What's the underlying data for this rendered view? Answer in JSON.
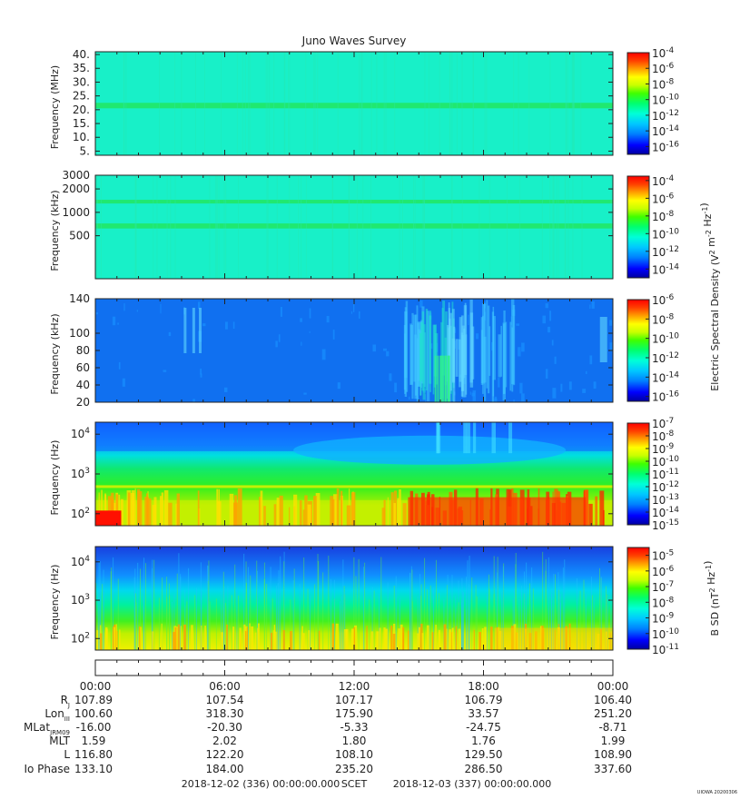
{
  "page": {
    "title": "Juno Waves Survey",
    "footer_stamp": "UIOWA 20200306"
  },
  "colors": {
    "scale": [
      "#0000a0",
      "#0000ff",
      "#0080ff",
      "#00c0ff",
      "#00ffe0",
      "#00ff80",
      "#40ff00",
      "#c0ff00",
      "#ffff00",
      "#ffa000",
      "#ff4000",
      "#ff0000"
    ]
  },
  "chart_data": [
    {
      "type": "heatmap",
      "ylabel": "Frequency (MHz)",
      "scale": "linear",
      "ylim": [
        3.5,
        41
      ],
      "yticks": [
        "5.",
        "10.",
        "15.",
        "20.",
        "25.",
        "30.",
        "35.",
        "40."
      ],
      "ytick_values": [
        5,
        10,
        15,
        20,
        25,
        30,
        35,
        40
      ],
      "colorbar": {
        "ticks": [
          "-4",
          "-6",
          "-8",
          "-10",
          "-12",
          "-14",
          "-16"
        ],
        "base": "10",
        "min_exp": -17,
        "max_exp": -4
      },
      "colorbar_label": "",
      "bands": [
        {
          "from": 20.5,
          "to": 22.5
        }
      ]
    },
    {
      "type": "heatmap",
      "ylabel": "Frequency (kHz)",
      "scale": "log",
      "ylim": [
        140,
        3000
      ],
      "yticks": [
        "500",
        "1000",
        "2000",
        "3000"
      ],
      "ytick_values": [
        500,
        1000,
        2000,
        3000
      ],
      "colorbar": {
        "ticks": [
          "-4",
          "-6",
          "-8",
          "-10",
          "-12",
          "-14"
        ],
        "base": "10",
        "min_exp": -15,
        "max_exp": -3.5
      },
      "colorbar_label": "Electric Spectral Density (V^2 m^-2 Hz^-1)",
      "bands": [
        {
          "from": 620,
          "to": 720
        },
        {
          "from": 1300,
          "to": 1450
        }
      ]
    },
    {
      "type": "heatmap",
      "ylabel": "Frequency (kHz)",
      "scale": "linear",
      "ylim": [
        20,
        140
      ],
      "yticks": [
        "20",
        "40",
        "60",
        "80",
        "100",
        "140"
      ],
      "ytick_values": [
        20,
        40,
        60,
        80,
        100,
        140
      ],
      "colorbar": {
        "ticks": [
          "-6",
          "-8",
          "-10",
          "-12",
          "-14",
          "-16"
        ],
        "base": "10",
        "min_exp": -16.5,
        "max_exp": -6
      },
      "colorbar_label": ""
    },
    {
      "type": "heatmap",
      "ylabel": "Frequency (Hz)",
      "scale": "log",
      "ylim": [
        50,
        20000
      ],
      "yticks": [
        "10^2",
        "10^3",
        "10^4"
      ],
      "ytick_values": [
        100,
        1000,
        10000
      ],
      "colorbar": {
        "ticks": [
          "-7",
          "-8",
          "-9",
          "-10",
          "-11",
          "-12",
          "-13",
          "-14",
          "-15"
        ],
        "base": "10",
        "min_exp": -15,
        "max_exp": -7
      },
      "colorbar_label": ""
    },
    {
      "type": "heatmap",
      "ylabel": "Frequency (Hz)",
      "scale": "log",
      "ylim": [
        50,
        25000
      ],
      "yticks": [
        "10^2",
        "10^3",
        "10^4"
      ],
      "ytick_values": [
        100,
        1000,
        10000
      ],
      "colorbar": {
        "ticks": [
          "-5",
          "-6",
          "-7",
          "-8",
          "-9",
          "-10",
          "-11"
        ],
        "base": "10",
        "min_exp": -11,
        "max_exp": -4.5
      },
      "colorbar_label": "B SD (nT^2 Hz^-1)"
    }
  ],
  "xaxis": {
    "ticks": [
      "00:00",
      "06:00",
      "12:00",
      "18:00",
      "00:00"
    ],
    "tick_hours": [
      0,
      6,
      12,
      18,
      24
    ],
    "xlim_hours": [
      0,
      24
    ]
  },
  "ephemeris": [
    {
      "label": "RJ",
      "values": [
        "107.89",
        "107.54",
        "107.17",
        "106.79",
        "106.40"
      ]
    },
    {
      "label": "LonIII",
      "values": [
        "100.60",
        "318.30",
        "175.90",
        "33.57",
        "251.20"
      ]
    },
    {
      "label": "MLatJRM09",
      "values": [
        "-16.00",
        "-20.30",
        "-5.33",
        "-24.75",
        "-8.71"
      ]
    },
    {
      "label": "MLT",
      "values": [
        "1.59",
        "2.02",
        "1.80",
        "1.76",
        "1.99"
      ]
    },
    {
      "label": "L",
      "values": [
        "116.80",
        "122.20",
        "108.10",
        "129.50",
        "108.90"
      ]
    },
    {
      "label": "Io Phase",
      "values": [
        "133.10",
        "184.00",
        "235.20",
        "286.50",
        "337.60"
      ]
    }
  ],
  "footer": {
    "start": "2018-12-02 (336) 00:00:00.000",
    "label": "SCET",
    "end": "2018-12-03 (337) 00:00:00.000"
  }
}
